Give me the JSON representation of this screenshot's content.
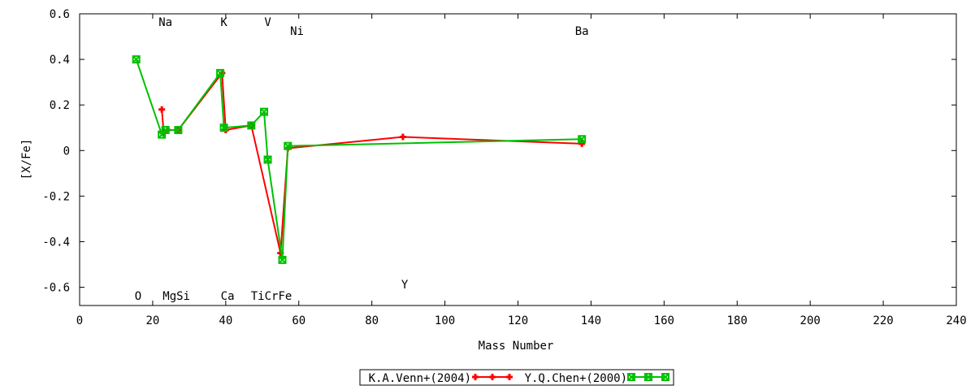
{
  "chart_data": {
    "type": "line",
    "title": "",
    "xlabel": "Mass Number",
    "ylabel": "[X/Fe]",
    "xlim": [
      0,
      240
    ],
    "ylim": [
      -0.68,
      0.6
    ],
    "xticks": [
      "0",
      "20",
      "40",
      "60",
      "80",
      "100",
      "120",
      "140",
      "160",
      "180",
      "200",
      "220",
      "240"
    ],
    "yticks": [
      "0.6",
      "0.4",
      "0.2",
      "0",
      "-0.2",
      "-0.4",
      "-0.6"
    ],
    "grid": false,
    "legend_position": "bottom-center",
    "series": [
      {
        "name": "K.A.Venn+(2004)",
        "color": "#ff0000",
        "marker": "plus",
        "points": [
          [
            22.5,
            0.18
          ],
          [
            23,
            0.08
          ],
          [
            24,
            0.09
          ],
          [
            27,
            0.09
          ],
          [
            39,
            0.34
          ],
          [
            40,
            0.09
          ],
          [
            47,
            0.11
          ],
          [
            55,
            -0.45
          ],
          [
            57,
            0.01
          ],
          [
            88.5,
            0.06
          ],
          [
            137.5,
            0.03
          ]
        ]
      },
      {
        "name": "Y.Q.Chen+(2000)",
        "color": "#00c000",
        "marker": "box-x",
        "points": [
          [
            15.5,
            0.4
          ],
          [
            22.5,
            0.07
          ],
          [
            23.5,
            0.09
          ],
          [
            27,
            0.09
          ],
          [
            38.5,
            0.34
          ],
          [
            39.5,
            0.1
          ],
          [
            47,
            0.11
          ],
          [
            50.5,
            0.17
          ],
          [
            51.5,
            -0.04
          ],
          [
            55.5,
            -0.48
          ],
          [
            57,
            0.02
          ],
          [
            137.5,
            0.05
          ]
        ]
      }
    ],
    "element_labels_top": [
      {
        "text": "Na",
        "x": 23.5
      },
      {
        "text": "K",
        "x": 39.5
      },
      {
        "text": "V",
        "x": 51.5
      },
      {
        "text": "Ni",
        "x": 59.5
      },
      {
        "text": "Ba",
        "x": 137.5
      }
    ],
    "element_labels_bottom": [
      {
        "text": "O",
        "x": 16
      },
      {
        "text": "MgSi",
        "x": 26.5
      },
      {
        "text": "Ca",
        "x": 40.5
      },
      {
        "text": "TiCrFe",
        "x": 52.5
      },
      {
        "text": "Y",
        "x": 89
      }
    ]
  }
}
